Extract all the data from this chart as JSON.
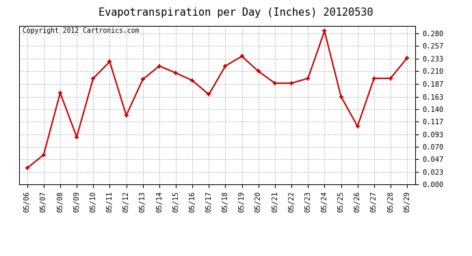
{
  "title": "Evapotranspiration per Day (Inches) 20120530",
  "copyright": "Copyright 2012 Cartronics.com",
  "dates": [
    "05/06",
    "05/07",
    "05/08",
    "05/09",
    "05/10",
    "05/11",
    "05/12",
    "05/13",
    "05/14",
    "05/15",
    "05/16",
    "05/17",
    "05/18",
    "05/19",
    "05/20",
    "05/21",
    "05/22",
    "05/23",
    "05/24",
    "05/25",
    "05/26",
    "05/27",
    "05/28",
    "05/29"
  ],
  "values": [
    0.03,
    0.055,
    0.17,
    0.088,
    0.197,
    0.228,
    0.128,
    0.195,
    0.22,
    0.207,
    0.193,
    0.167,
    0.22,
    0.238,
    0.21,
    0.188,
    0.188,
    0.197,
    0.285,
    0.163,
    0.108,
    0.197,
    0.197,
    0.235
  ],
  "line_color": "#cc0000",
  "marker": "+",
  "marker_size": 5,
  "line_width": 1.5,
  "ylim": [
    0.0,
    0.295
  ],
  "yticks": [
    0.0,
    0.023,
    0.047,
    0.07,
    0.093,
    0.117,
    0.14,
    0.163,
    0.187,
    0.21,
    0.233,
    0.257,
    0.28
  ],
  "background_color": "#ffffff",
  "plot_bg_color": "#ffffff",
  "grid_color": "#bbbbbb",
  "title_fontsize": 11,
  "copyright_fontsize": 7,
  "tick_fontsize": 7.5
}
